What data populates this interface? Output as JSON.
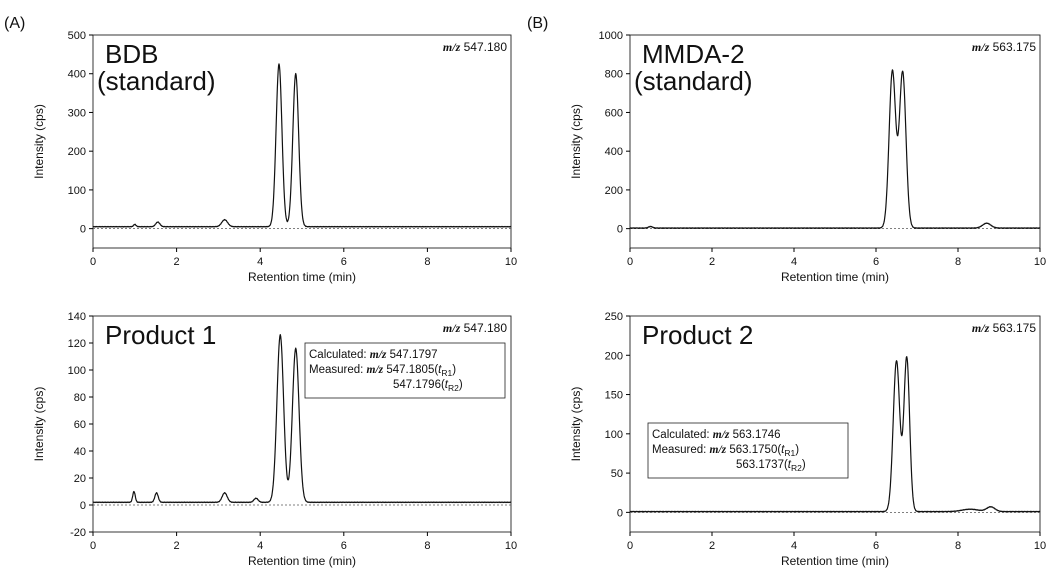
{
  "figure": {
    "panel_A_letter": "(A)",
    "panel_B_letter": "(B)"
  },
  "chart_data": [
    {
      "type": "line",
      "panel": "A-top",
      "label_line1": "BDB",
      "label_line2": "(standard)",
      "mz_prefix": "m/z",
      "mz_value": "547.180",
      "xlabel": "Retention time (min)",
      "ylabel": "Intensity (cps)",
      "xlim": [
        0,
        10
      ],
      "ylim": [
        -50,
        500
      ],
      "xticks": [
        0,
        2,
        4,
        6,
        8,
        10
      ],
      "yticks": [
        0,
        100,
        200,
        300,
        400,
        500
      ],
      "baseline": 5,
      "peaks": [
        {
          "x": 1.0,
          "h": 6,
          "w": 0.03
        },
        {
          "x": 1.55,
          "h": 12,
          "w": 0.05
        },
        {
          "x": 3.15,
          "h": 18,
          "w": 0.07
        },
        {
          "x": 4.45,
          "h": 420,
          "w": 0.07
        },
        {
          "x": 4.85,
          "h": 395,
          "w": 0.07
        }
      ]
    },
    {
      "type": "line",
      "panel": "B-top",
      "label_line1": "MMDA-2",
      "label_line2": "(standard)",
      "mz_prefix": "m/z",
      "mz_value": "563.175",
      "xlabel": "Retention time (min)",
      "ylabel": "Intensity (cps)",
      "xlim": [
        0,
        10
      ],
      "ylim": [
        -100,
        1000
      ],
      "xticks": [
        0,
        2,
        4,
        6,
        8,
        10
      ],
      "yticks": [
        0,
        200,
        400,
        600,
        800,
        1000
      ],
      "baseline": 3,
      "peaks": [
        {
          "x": 0.5,
          "h": 8,
          "w": 0.05
        },
        {
          "x": 6.4,
          "h": 810,
          "w": 0.08
        },
        {
          "x": 6.65,
          "h": 805,
          "w": 0.08
        },
        {
          "x": 8.7,
          "h": 25,
          "w": 0.1
        }
      ]
    },
    {
      "type": "line",
      "panel": "A-bottom",
      "label_line1": "Product 1",
      "label_line2": "",
      "mz_prefix": "m/z",
      "mz_value": "547.180",
      "calculated_label": "Calculated:",
      "calculated_value": "547.1797",
      "measured_label": "Measured:",
      "measured_value1": "547.1805(",
      "measured_value2": "547.1796(",
      "tr1": "R1",
      "tr2": "R2",
      "xlabel": "Retention time (min)",
      "ylabel": "Intensity (cps)",
      "xlim": [
        0,
        10
      ],
      "ylim": [
        -20,
        140
      ],
      "xticks": [
        0,
        2,
        4,
        6,
        8,
        10
      ],
      "yticks": [
        -20,
        0,
        20,
        40,
        60,
        80,
        100,
        120,
        140
      ],
      "baseline": 2,
      "peaks": [
        {
          "x": 0.98,
          "h": 8,
          "w": 0.03
        },
        {
          "x": 1.52,
          "h": 7,
          "w": 0.04
        },
        {
          "x": 3.15,
          "h": 7,
          "w": 0.06
        },
        {
          "x": 3.9,
          "h": 3,
          "w": 0.05
        },
        {
          "x": 4.48,
          "h": 124,
          "w": 0.08
        },
        {
          "x": 4.85,
          "h": 114,
          "w": 0.08
        }
      ]
    },
    {
      "type": "line",
      "panel": "B-bottom",
      "label_line1": "Product 2",
      "label_line2": "",
      "mz_prefix": "m/z",
      "mz_value": "563.175",
      "calculated_label": "Calculated:",
      "calculated_value": "563.1746",
      "measured_label": "Measured:",
      "measured_value1": "563.1750(",
      "measured_value2": "563.1737(",
      "tr1": "R1",
      "tr2": "R2",
      "xlabel": "Retention time (min)",
      "ylabel": "Intensity (cps)",
      "xlim": [
        0,
        10
      ],
      "ylim": [
        -25,
        250
      ],
      "xticks": [
        0,
        2,
        4,
        6,
        8,
        10
      ],
      "yticks": [
        0,
        50,
        100,
        150,
        200,
        250
      ],
      "baseline": 1,
      "peaks": [
        {
          "x": 6.5,
          "h": 192,
          "w": 0.08
        },
        {
          "x": 6.75,
          "h": 196,
          "w": 0.07
        },
        {
          "x": 8.3,
          "h": 3,
          "w": 0.2
        },
        {
          "x": 8.8,
          "h": 6,
          "w": 0.1
        }
      ]
    }
  ]
}
